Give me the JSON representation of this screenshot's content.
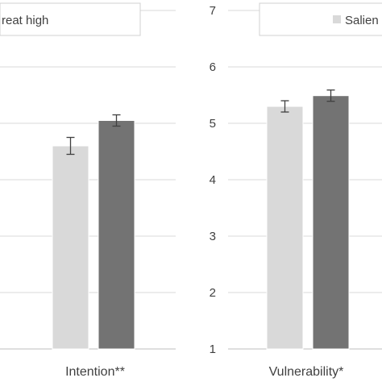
{
  "chart_data": [
    {
      "type": "bar",
      "categories": [
        "Intention**"
      ],
      "ylim": [
        1,
        7
      ],
      "grid": true,
      "legend_position": "top",
      "legend_text": "reat high",
      "series": [
        {
          "values": [
            4.6
          ],
          "error": [
            0.15
          ],
          "color": "#d9d9d9"
        },
        {
          "values": [
            5.05
          ],
          "error": [
            0.1
          ],
          "color": "#737373"
        }
      ]
    },
    {
      "type": "bar",
      "categories": [
        "Vulnerability*"
      ],
      "ylim": [
        1,
        7
      ],
      "yticks": [
        "1",
        "2",
        "3",
        "4",
        "5",
        "6",
        "7"
      ],
      "grid": true,
      "legend_position": "top",
      "legend_text": "Salien",
      "series": [
        {
          "values": [
            5.3
          ],
          "error": [
            0.1
          ],
          "color": "#d9d9d9"
        },
        {
          "values": [
            5.49
          ],
          "error": [
            0.1
          ],
          "color": "#737373"
        }
      ]
    }
  ]
}
